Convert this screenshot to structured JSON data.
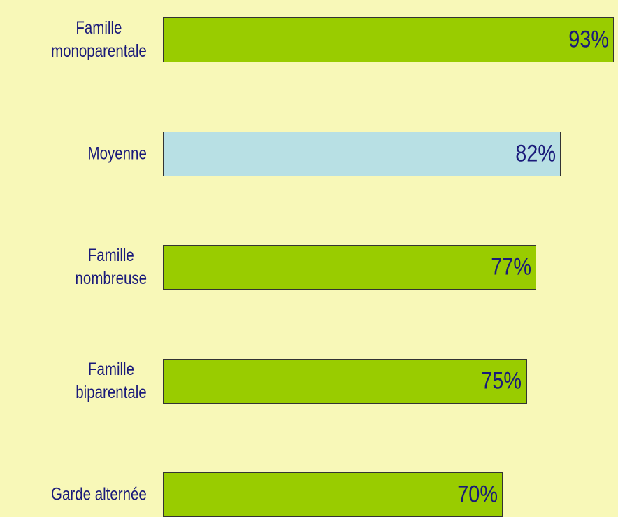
{
  "chart_data": {
    "type": "bar",
    "orientation": "horizontal",
    "categories": [
      "Famille\nmonoparentale",
      "Moyenne",
      "Famille\nnombreuse",
      "Famille\nbiparentale",
      "Garde alternée"
    ],
    "values": [
      93,
      82,
      77,
      75,
      70
    ],
    "value_labels": [
      "93%",
      "82%",
      "77%",
      "75%",
      "70%"
    ],
    "colors": [
      "#99cc00",
      "#b8e0e4",
      "#99cc00",
      "#99cc00",
      "#99cc00"
    ]
  }
}
